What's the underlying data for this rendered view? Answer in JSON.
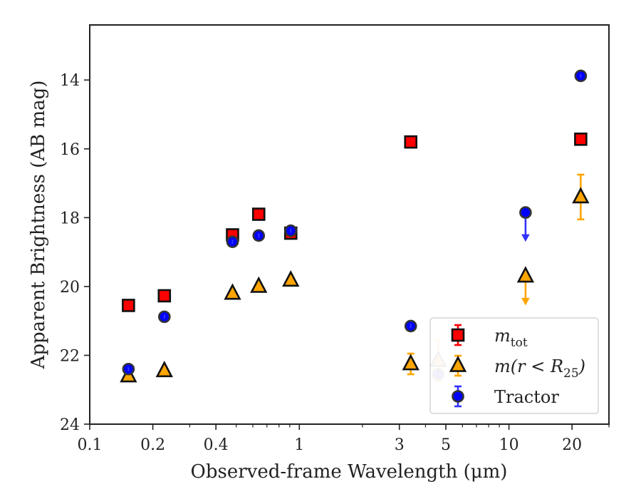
{
  "chart_data": {
    "type": "scatter",
    "xlabel": "Observed-frame Wavelength (μm)",
    "ylabel": "Apparent Brightness (AB mag)",
    "xscale": "log",
    "xlim": [
      0.1,
      30
    ],
    "ylim": [
      24,
      12.4
    ],
    "y_inverted": true,
    "grid": false,
    "legend_position": "lower-right",
    "x_ticks": [
      0.1,
      0.2,
      0.4,
      1,
      3,
      5,
      10,
      20
    ],
    "x_tick_labels": [
      "0.1",
      "0.2",
      "0.4",
      "1",
      "3",
      "5",
      "10",
      "20"
    ],
    "y_ticks": [
      14,
      16,
      18,
      20,
      22,
      24
    ],
    "y_tick_labels": [
      "14",
      "16",
      "18",
      "20",
      "22",
      "24"
    ],
    "series": [
      {
        "name": "m_tot",
        "legend_main": "m",
        "legend_sub": "tot",
        "marker": "square",
        "face_color": "#ff0000",
        "errorbar_color": "#ff0000",
        "points": [
          {
            "x": 0.153,
            "y": 20.55
          },
          {
            "x": 0.227,
            "y": 20.27
          },
          {
            "x": 0.48,
            "y": 18.5
          },
          {
            "x": 0.64,
            "y": 17.9
          },
          {
            "x": 0.91,
            "y": 18.45
          },
          {
            "x": 3.4,
            "y": 15.8
          },
          {
            "x": 22,
            "y": 15.72
          }
        ]
      },
      {
        "name": "m(r < R_25)",
        "legend_main": "m(r < R",
        "legend_sub": "25",
        "legend_end": ")",
        "marker": "triangle",
        "face_color": "#ffa500",
        "errorbar_color": "#ffa500",
        "points": [
          {
            "x": 0.153,
            "y": 22.6
          },
          {
            "x": 0.227,
            "y": 22.45
          },
          {
            "x": 0.48,
            "y": 20.2
          },
          {
            "x": 0.64,
            "y": 20.0
          },
          {
            "x": 0.91,
            "y": 19.82
          },
          {
            "x": 3.4,
            "y": 22.25,
            "yerr": 0.3
          },
          {
            "x": 4.6,
            "y": 22.15,
            "yerr": 0.6,
            "faded": true
          },
          {
            "x": 12,
            "y": 19.7,
            "upper_limit": true
          },
          {
            "x": 22,
            "y": 17.4,
            "yerr": 0.65
          }
        ]
      },
      {
        "name": "Tractor",
        "legend_main": "Tractor",
        "marker": "circle",
        "face_color": "#0000ff",
        "errorbar_color": "#3333ff",
        "points": [
          {
            "x": 0.153,
            "y": 22.4
          },
          {
            "x": 0.227,
            "y": 20.88
          },
          {
            "x": 0.48,
            "y": 18.7
          },
          {
            "x": 0.64,
            "y": 18.52
          },
          {
            "x": 0.91,
            "y": 18.38
          },
          {
            "x": 3.4,
            "y": 21.15
          },
          {
            "x": 4.6,
            "y": 22.55,
            "faded": true
          },
          {
            "x": 12,
            "y": 17.85,
            "upper_limit": true
          },
          {
            "x": 22,
            "y": 13.88
          }
        ]
      }
    ]
  }
}
